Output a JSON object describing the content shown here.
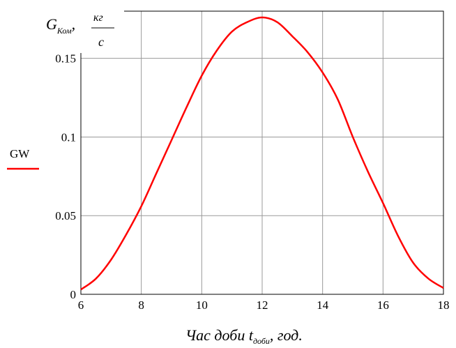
{
  "chart_data": {
    "type": "line",
    "y_title": {
      "main": "G",
      "sub": "Ком",
      "sep": ",",
      "num": "кг",
      "den": "с"
    },
    "x_title": {
      "main": "Час доби t",
      "sub": "доби",
      "tail": ", год."
    },
    "xlim": [
      6,
      18
    ],
    "ylim": [
      0,
      0.18
    ],
    "grid": true,
    "x_ticks": [
      6,
      8,
      10,
      12,
      14,
      16,
      18
    ],
    "x_tick_labels": [
      "6",
      "8",
      "10",
      "12",
      "14",
      "16",
      "18"
    ],
    "y_ticks": [
      0,
      0.05,
      0.1,
      0.15
    ],
    "y_tick_labels": [
      "0",
      "0.05",
      "0.1",
      "0.15"
    ],
    "legend_position": "left",
    "colors": {
      "series": "#ff0000",
      "grid": "#999999",
      "axis": "#000000"
    },
    "series": [
      {
        "name": "GW",
        "x": [
          6,
          6.5,
          7,
          7.5,
          8,
          8.5,
          9,
          9.5,
          10,
          10.5,
          11,
          11.5,
          12,
          12.5,
          13,
          13.5,
          14,
          14.5,
          15,
          15.5,
          16,
          16.5,
          17,
          17.5,
          18
        ],
        "y": [
          0.003,
          0.01,
          0.022,
          0.038,
          0.056,
          0.077,
          0.098,
          0.119,
          0.139,
          0.155,
          0.167,
          0.173,
          0.176,
          0.173,
          0.164,
          0.154,
          0.141,
          0.124,
          0.1,
          0.078,
          0.058,
          0.037,
          0.02,
          0.01,
          0.004
        ]
      }
    ]
  }
}
